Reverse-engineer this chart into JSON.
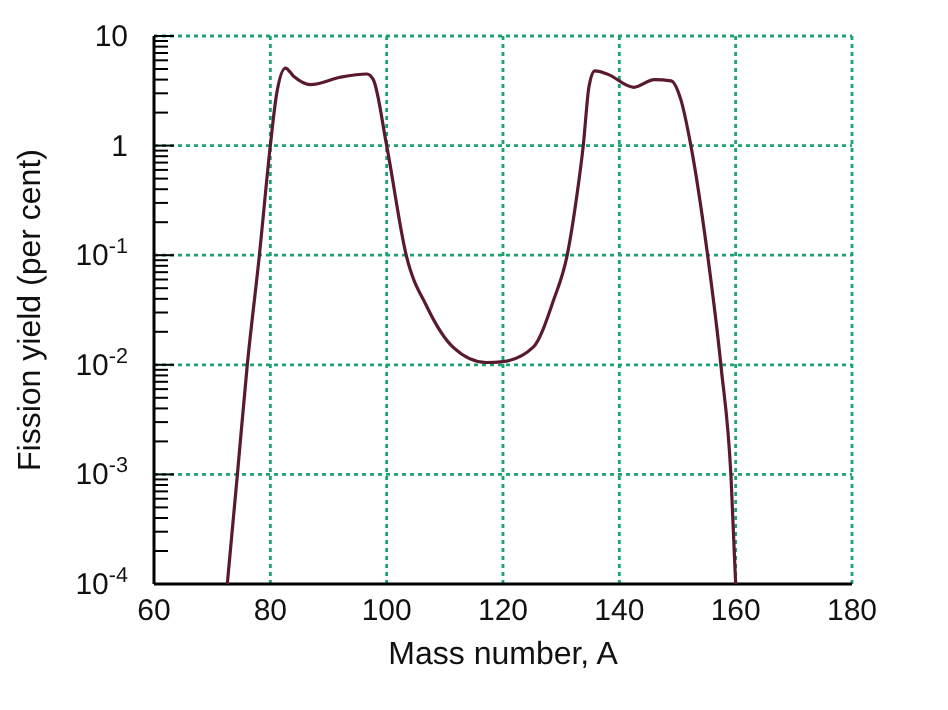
{
  "chart_data": {
    "type": "line",
    "xlabel": "Mass number, A",
    "ylabel": "Fission yield (per cent)",
    "log": "y",
    "grid": true,
    "line_style": "solid",
    "xlim": [
      60,
      180
    ],
    "xticks": [
      60,
      80,
      100,
      120,
      140,
      160,
      180
    ],
    "ylim": [
      0.0001,
      10
    ],
    "yticks": [
      {
        "value": 0.0001,
        "label": "10$^{-4}$"
      },
      {
        "value": 0.0002,
        "label": null
      },
      {
        "value": 0.0003,
        "label": null
      },
      {
        "value": 0.0004,
        "label": null
      },
      {
        "value": 0.0005,
        "label": null
      },
      {
        "value": 0.0006,
        "label": null
      },
      {
        "value": 0.0007,
        "label": null
      },
      {
        "value": 0.0008,
        "label": null
      },
      {
        "value": 0.0009,
        "label": null
      },
      {
        "value": 0.001,
        "label": "10$^{-3}$"
      },
      {
        "value": 0.002,
        "label": null
      },
      {
        "value": 0.003,
        "label": null
      },
      {
        "value": 0.004,
        "label": null
      },
      {
        "value": 0.005,
        "label": null
      },
      {
        "value": 0.006,
        "label": null
      },
      {
        "value": 0.007,
        "label": null
      },
      {
        "value": 0.008,
        "label": null
      },
      {
        "value": 0.009,
        "label": null
      },
      {
        "value": 0.01,
        "label": "10$^{-2}$"
      },
      {
        "value": 0.02,
        "label": null
      },
      {
        "value": 0.03,
        "label": null
      },
      {
        "value": 0.04,
        "label": null
      },
      {
        "value": 0.05,
        "label": null
      },
      {
        "value": 0.06,
        "label": null
      },
      {
        "value": 0.07,
        "label": null
      },
      {
        "value": 0.08,
        "label": null
      },
      {
        "value": 0.09,
        "label": null
      },
      {
        "value": 0.1,
        "label": "10$^{-1}$"
      },
      {
        "value": 0.2,
        "label": null
      },
      {
        "value": 0.3,
        "label": null
      },
      {
        "value": 0.4,
        "label": null
      },
      {
        "value": 0.5,
        "label": null
      },
      {
        "value": 0.6,
        "label": null
      },
      {
        "value": 0.7,
        "label": null
      },
      {
        "value": 0.8,
        "label": null
      },
      {
        "value": 0.9,
        "label": null
      },
      1,
      {
        "value": 2,
        "label": null
      },
      {
        "value": 3,
        "label": null
      },
      {
        "value": 4,
        "label": null
      },
      {
        "value": 5,
        "label": null
      },
      {
        "value": 6,
        "label": null
      },
      {
        "value": 7,
        "label": null
      },
      {
        "value": 8,
        "label": null
      },
      {
        "value": 9,
        "label": null
      },
      10
    ],
    "series": [
      {
        "color": "#5a1a2e",
        "x": [
          72.6,
          74.3,
          76,
          78.1,
          80,
          81.1,
          82.6,
          84,
          86.9,
          92,
          96.6,
          97.7,
          100,
          103.4,
          106.9,
          111.4,
          117.1,
          120,
          125.2,
          128.7,
          131,
          132.7,
          133.8,
          134.8,
          135.8,
          137.9,
          142.5,
          146,
          148.9,
          150.6,
          152.3,
          155.2,
          157.5,
          159.2,
          160
        ],
        "values": [
          0.0001,
          0.00095,
          0.0095,
          0.098,
          1,
          3,
          5.1,
          4.3,
          3.6,
          4.2,
          4.5,
          4,
          1,
          0.098,
          0.034,
          0.0145,
          0.0105,
          0.0107,
          0.0145,
          0.039,
          0.098,
          0.35,
          1,
          3.5,
          4.8,
          4.5,
          3.4,
          4,
          3.9,
          2.6,
          1,
          0.098,
          0.0095,
          0.00095,
          0.0001
        ]
      }
    ]
  }
}
